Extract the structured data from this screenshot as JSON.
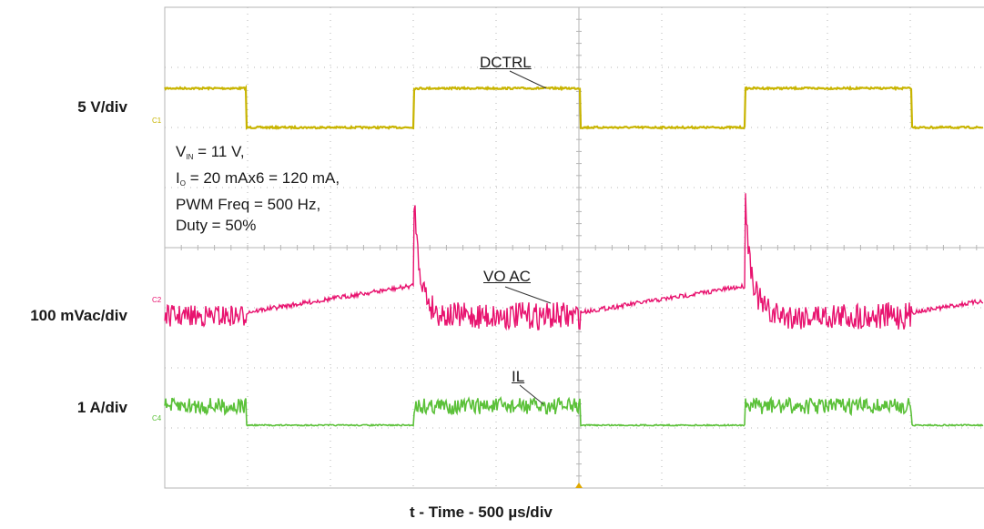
{
  "chart_data": {
    "type": "line",
    "title": "",
    "xlabel": "t - Time - 500 µs/div",
    "x_divisions": 10,
    "y_divisions": 8,
    "x_units_per_div": "500 µs",
    "grid": true,
    "channels": [
      {
        "id": "C1",
        "name": "DCTRL",
        "scale": "5 V/div",
        "color": "#c8b400",
        "waveform": "square",
        "period_div": 4.1,
        "duty": 0.5
      },
      {
        "id": "C2",
        "name": "VO AC",
        "scale": "100 mVac/div",
        "color": "#e8136f",
        "waveform": "ripple-with-ramp-and-spike",
        "period_div": 4.1
      },
      {
        "id": "C4",
        "name": "IL",
        "scale": "1 A/div",
        "color": "#5cc13a",
        "waveform": "square",
        "period_div": 4.1,
        "duty": 0.5
      }
    ],
    "annotations": {
      "vin": "V",
      "vin_sub": "IN",
      "vin_rest": " = 11 V,",
      "io": "I",
      "io_sub": "O",
      "io_rest": " = 20 mAx6 = 120 mA,",
      "pwm": "PWM Freq = 500 Hz,",
      "duty": "Duty = 50%"
    }
  },
  "labels": {
    "ch1_scale": "5 V/div",
    "ch2_scale": "100 mVac/div",
    "ch4_scale": "1 A/div",
    "ch1_name": "DCTRL",
    "ch2_name": "VO AC",
    "ch4_name": "IL",
    "ch1_tag": "C1",
    "ch2_tag": "C2",
    "ch4_tag": "C4",
    "xlabel": "t - Time - 500 µs/div"
  },
  "colors": {
    "ch1": "#c8b400",
    "ch2": "#e8136f",
    "ch4": "#5cc13a",
    "grid": "#b5b5b5"
  }
}
